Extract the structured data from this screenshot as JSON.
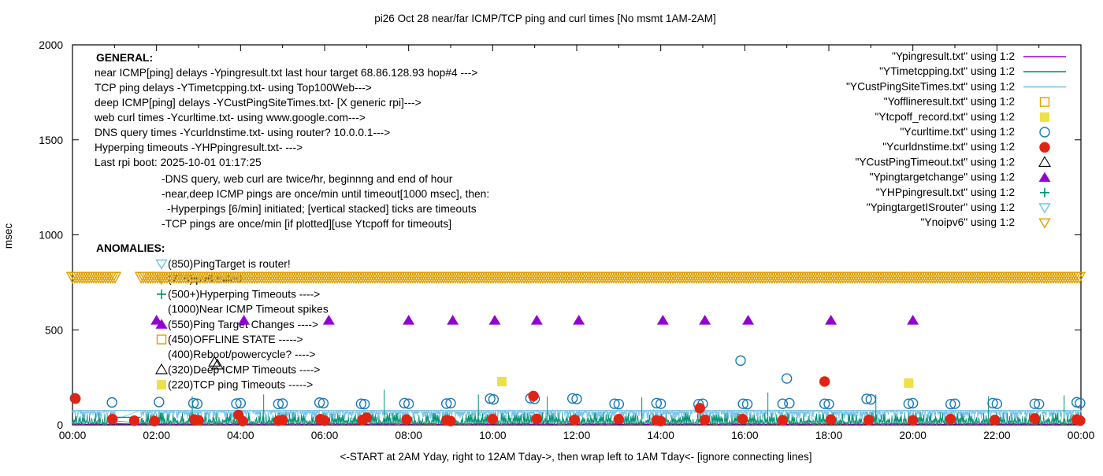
{
  "title": "pi26 Oct 28  near/far ICMP/TCP ping and curl times [No msmt 1AM-2AM]",
  "axes": {
    "y_label": "msec",
    "x_label": "<-START at 2AM Yday, right to 12AM Tday->, then wrap left to 1AM Tday<- [ignore connecting lines]",
    "y_ticks": [
      0,
      500,
      1000,
      1500,
      2000
    ],
    "x_tick_hours": [
      0,
      2,
      4,
      6,
      8,
      10,
      12,
      14,
      16,
      18,
      20,
      22,
      24
    ],
    "x_tick_labels": [
      "00:00",
      "02:00",
      "04:00",
      "06:00",
      "08:00",
      "10:00",
      "12:00",
      "14:00",
      "16:00",
      "18:00",
      "20:00",
      "22:00",
      "00:00"
    ],
    "x_minor_hours": [
      1,
      3,
      5,
      7,
      9,
      11,
      13,
      15,
      17,
      19,
      21,
      23
    ],
    "x_range_hours": [
      0,
      24
    ],
    "y_range": [
      0,
      2000
    ]
  },
  "colors": {
    "purple": "#9400d3",
    "teal": "#009272",
    "skyblue": "#74c2e8",
    "orange": "#e0a000",
    "yellow": "#ede049",
    "blue": "#1878b4",
    "red": "#e02414",
    "black": "#000000"
  },
  "legend": [
    {
      "label": "\"Ypingresult.txt\" using 1:2",
      "sample": "line",
      "color": "purple"
    },
    {
      "label": "\"YTimetcpping.txt\" using 1:2",
      "sample": "line",
      "color": "teal"
    },
    {
      "label": "\"YCustPingSiteTimes.txt\" using 1:2",
      "sample": "line",
      "color": "skyblue"
    },
    {
      "label": "\"Yofflineresult.txt\" using 1:2",
      "sample": "square-open",
      "color": "orange"
    },
    {
      "label": "\"Ytcpoff_record.txt\" using 1:2",
      "sample": "square-filled",
      "color": "yellow"
    },
    {
      "label": "\"Ycurltime.txt\" using 1:2",
      "sample": "circle-open",
      "color": "blue"
    },
    {
      "label": "\"Ycurldnstime.txt\" using 1:2",
      "sample": "circle-filled",
      "color": "red"
    },
    {
      "label": "\"YCustPingTimeout.txt\" using 1:2",
      "sample": "tri-up-open",
      "color": "black"
    },
    {
      "label": "\"Ypingtargetchange\" using 1:2",
      "sample": "tri-up-filled",
      "color": "purple"
    },
    {
      "label": "\"YHPpingresult.txt\" using 1:2",
      "sample": "plus",
      "color": "teal"
    },
    {
      "label": "\"YpingtargetISrouter\" using 1:2",
      "sample": "tri-down-open",
      "color": "skyblue"
    },
    {
      "label": "\"Ynoipv6\" using 1:2",
      "sample": "tri-down-open",
      "color": "orange"
    }
  ],
  "general": {
    "heading": "GENERAL:",
    "lines": [
      {
        "indent": 0,
        "text": "near ICMP[ping] delays -Ypingresult.txt last hour target 68.86.128.93 hop#4 --->"
      },
      {
        "indent": 0,
        "text": "TCP ping delays -YTimetcpping.txt- using Top100Web--->"
      },
      {
        "indent": 0,
        "text": "deep ICMP[ping] delays -YCustPingSiteTimes.txt- [X generic rpi]--->"
      },
      {
        "indent": 0,
        "text": "web curl times -Ycurltime.txt- using www.google.com--->"
      },
      {
        "indent": 0,
        "text": "DNS query times -Ycurldnstime.txt- using router? 10.0.0.1--->"
      },
      {
        "indent": 0,
        "text": "Hyperping timeouts -YHPpingresult.txt- --->"
      },
      {
        "indent": 0,
        "text": "Last rpi boot: 2025-10-01 01:17:25"
      },
      {
        "indent": 1,
        "text": "-DNS query, web curl are twice/hr, beginnng and end of hour"
      },
      {
        "indent": 1,
        "text": "-near,deep ICMP pings are once/min until timeout[1000 msec], then:"
      },
      {
        "indent": 2,
        "text": "-Hyperpings [6/min] initiated; [vertical stacked] ticks are timeouts"
      },
      {
        "indent": 1,
        "text": "-TCP pings are once/min [if plotted][use Ytcpoff for timeouts]"
      }
    ]
  },
  "anomalies": {
    "heading": "ANOMALIES:",
    "lines": [
      {
        "marker": "tri-down-open",
        "color": "skyblue",
        "text": "(850)PingTarget is router!"
      },
      {
        "marker": "tri-down-open",
        "color": "orange",
        "text": "(775)ipv6 failed"
      },
      {
        "marker": "plus",
        "color": "teal",
        "text": "(500+)Hyperping Timeouts ---->"
      },
      {
        "marker": "none",
        "color": "black",
        "text": "(1000)Near ICMP Timeout spikes"
      },
      {
        "marker": "tri-up-filled",
        "color": "purple",
        "text": "(550)Ping Target Changes ---->"
      },
      {
        "marker": "square-open",
        "color": "orange",
        "text": "(450)OFFLINE STATE ----->"
      },
      {
        "marker": "none",
        "color": "black",
        "text": "(400)Reboot/powercycle? ---->"
      },
      {
        "marker": "tri-up-open",
        "color": "black",
        "text": "(320)Deep ICMP Timeouts ---->"
      },
      {
        "marker": "square-filled",
        "color": "yellow",
        "text": "(220)TCP ping Timeouts ----->"
      }
    ]
  },
  "chart_data": {
    "type": "mixed",
    "x_unit": "hours 00:00-24:00",
    "y_unit": "msec",
    "no_measurement_gap_hours": [
      1.03,
      1.62
    ],
    "noise_seed": 42,
    "background_series": [
      {
        "name": "Ypingresult near-ICMP delay",
        "type": "noise-line",
        "color": "purple",
        "base": 4,
        "spread": 5,
        "gap_value": 5
      },
      {
        "name": "YCustPingSiteTimes deep-ICMP",
        "type": "noise-line",
        "color": "skyblue",
        "base": 76,
        "spread": -52,
        "gap_value": 76,
        "baseline_rule": true
      },
      {
        "name": "YTimetcpping TCP ping",
        "type": "noise-line",
        "color": "teal",
        "base": 8,
        "spread": 58,
        "gap_value": 40
      }
    ],
    "hyperping_spikes": {
      "name": "YHPpingresult hyperping timeout tick stacks",
      "color": "teal",
      "points": [
        [
          2.85,
          150
        ],
        [
          4.55,
          160
        ],
        [
          7.42,
          185
        ],
        [
          9.66,
          160
        ],
        [
          11.3,
          150
        ],
        [
          13.55,
          145
        ],
        [
          16.55,
          170
        ],
        [
          19.12,
          160
        ],
        [
          21.8,
          150
        ],
        [
          23.6,
          155
        ]
      ]
    },
    "band": {
      "name": "Ynoipv6 ipv6-failed marker band",
      "color": "orange",
      "marker": "tri-down-open",
      "value": 775,
      "marker_spacing_px": 3
    },
    "point_series": [
      {
        "name": "Ytcpoff_record TCP ping timeouts",
        "marker": "square-filled",
        "color": "yellow",
        "points": [
          [
            10.22,
            228
          ],
          [
            19.9,
            220
          ]
        ]
      },
      {
        "name": "YCustPingTimeout deep ICMP timeouts",
        "marker": "tri-up-open",
        "color": "black",
        "points": [
          [
            3.38,
            330
          ],
          [
            3.45,
            315
          ]
        ]
      },
      {
        "name": "Ypingtargetchange ping target changes",
        "marker": "tri-up-filled",
        "color": "purple",
        "points": [
          [
            2.0,
            550
          ],
          [
            4.08,
            550
          ],
          [
            6.1,
            550
          ],
          [
            8.0,
            550
          ],
          [
            9.05,
            550
          ],
          [
            10.05,
            550
          ],
          [
            11.05,
            550
          ],
          [
            12.05,
            550
          ],
          [
            14.05,
            550
          ],
          [
            15.05,
            550
          ],
          [
            16.08,
            550
          ],
          [
            18.05,
            550
          ],
          [
            20.0,
            550
          ]
        ]
      },
      {
        "name": "Ycurltime web curl times",
        "marker": "circle-open",
        "color": "blue",
        "points": [
          [
            0.06,
            140
          ],
          [
            0.94,
            118
          ],
          [
            2.06,
            120
          ],
          [
            2.88,
            114
          ],
          [
            2.97,
            111
          ],
          [
            3.9,
            112
          ],
          [
            4.0,
            114
          ],
          [
            4.9,
            110
          ],
          [
            5.0,
            112
          ],
          [
            5.88,
            117
          ],
          [
            5.97,
            114
          ],
          [
            6.87,
            111
          ],
          [
            6.95,
            109
          ],
          [
            7.9,
            114
          ],
          [
            8.0,
            111
          ],
          [
            8.9,
            112
          ],
          [
            9.0,
            114
          ],
          [
            9.94,
            138
          ],
          [
            10.02,
            134
          ],
          [
            10.9,
            140
          ],
          [
            11.0,
            137
          ],
          [
            11.9,
            139
          ],
          [
            12.0,
            136
          ],
          [
            12.9,
            111
          ],
          [
            13.0,
            109
          ],
          [
            13.9,
            114
          ],
          [
            14.0,
            111
          ],
          [
            14.9,
            109
          ],
          [
            15.0,
            111
          ],
          [
            15.9,
            338
          ],
          [
            15.96,
            111
          ],
          [
            16.06,
            109
          ],
          [
            16.9,
            111
          ],
          [
            17.0,
            244
          ],
          [
            17.06,
            114
          ],
          [
            17.9,
            111
          ],
          [
            18.0,
            109
          ],
          [
            18.9,
            137
          ],
          [
            19.0,
            134
          ],
          [
            19.9,
            111
          ],
          [
            20.0,
            114
          ],
          [
            20.9,
            109
          ],
          [
            21.0,
            111
          ],
          [
            21.9,
            114
          ],
          [
            22.0,
            111
          ],
          [
            22.9,
            111
          ],
          [
            23.0,
            109
          ],
          [
            23.9,
            119
          ],
          [
            23.98,
            114
          ]
        ]
      },
      {
        "name": "Ycurldnstime DNS query times",
        "marker": "circle-filled",
        "color": "red",
        "points": [
          [
            0.07,
            138
          ],
          [
            0.95,
            30
          ],
          [
            1.47,
            22
          ],
          [
            1.95,
            20
          ],
          [
            2.9,
            28
          ],
          [
            3.0,
            24
          ],
          [
            3.95,
            52
          ],
          [
            4.05,
            20
          ],
          [
            4.9,
            22
          ],
          [
            5.0,
            26
          ],
          [
            5.9,
            30
          ],
          [
            6.0,
            22
          ],
          [
            6.9,
            26
          ],
          [
            7.0,
            38
          ],
          [
            7.95,
            28
          ],
          [
            8.9,
            24
          ],
          [
            9.0,
            20
          ],
          [
            10.0,
            30
          ],
          [
            10.97,
            152
          ],
          [
            11.05,
            32
          ],
          [
            11.95,
            26
          ],
          [
            13.0,
            30
          ],
          [
            13.9,
            24
          ],
          [
            14.0,
            20
          ],
          [
            14.93,
            88
          ],
          [
            15.05,
            26
          ],
          [
            15.95,
            30
          ],
          [
            16.9,
            24
          ],
          [
            17.9,
            228
          ],
          [
            18.05,
            28
          ],
          [
            18.95,
            26
          ],
          [
            20.0,
            24
          ],
          [
            20.9,
            30
          ],
          [
            21.95,
            26
          ],
          [
            22.9,
            34
          ],
          [
            23.9,
            28
          ],
          [
            23.98,
            22
          ]
        ]
      }
    ]
  }
}
